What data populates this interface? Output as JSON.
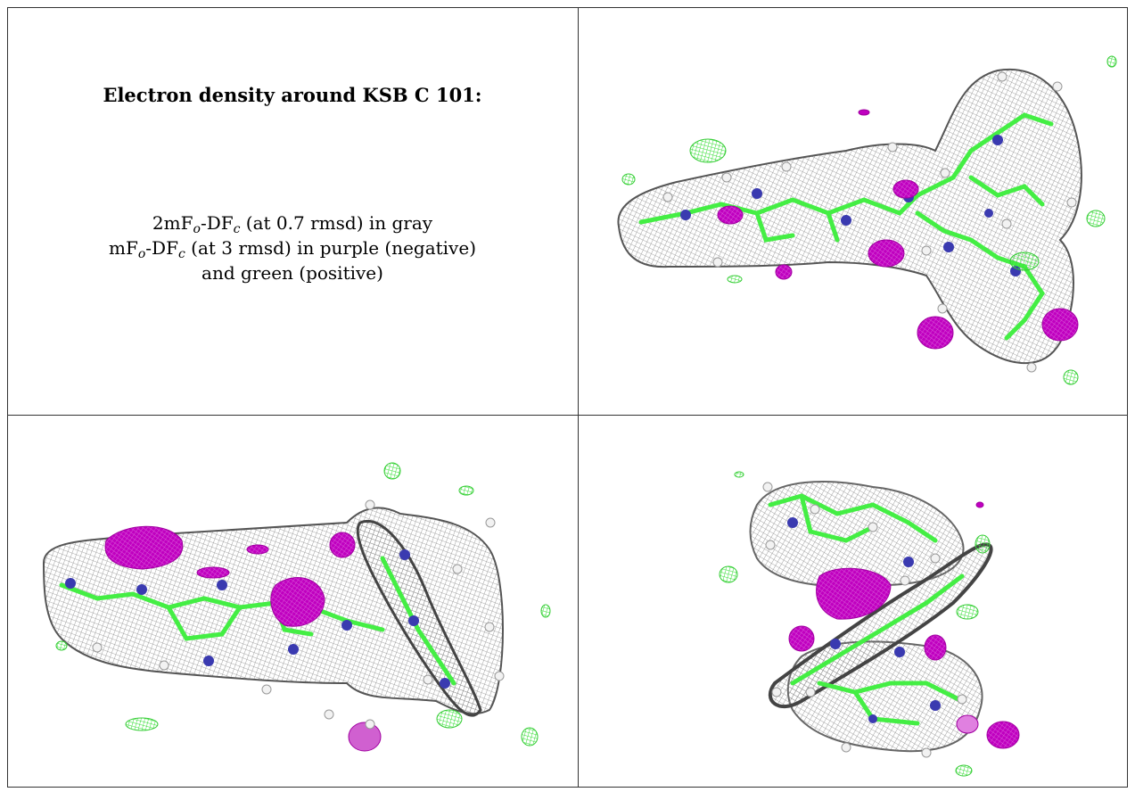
{
  "caption": {
    "title": "Electron density around KSB C 101:",
    "line1": {
      "prefix": "2mF",
      "sub1": "o",
      "mid": "-DF",
      "sub2": "c",
      "suffix": " (at 0.7 rmsd) in gray"
    },
    "line2": {
      "prefix": "mF",
      "sub1": "o",
      "mid": "-DF",
      "sub2": "c",
      "suffix": " (at 3 rmsd) in purple (negative)"
    },
    "line3": "and green (positive)"
  },
  "colors": {
    "mesh_gray": "#8a8a8a",
    "negative_purple": "#c000c0",
    "positive_green": "#44ee44",
    "nitrogen_blue": "#3a3ab0",
    "hydrogen_white": "#f2f2f2"
  },
  "views": [
    {
      "id": "view-top-right",
      "icon": "molecule-density-view-1"
    },
    {
      "id": "view-bottom-left",
      "icon": "molecule-density-view-2"
    },
    {
      "id": "view-bottom-right",
      "icon": "molecule-density-view-3"
    }
  ]
}
